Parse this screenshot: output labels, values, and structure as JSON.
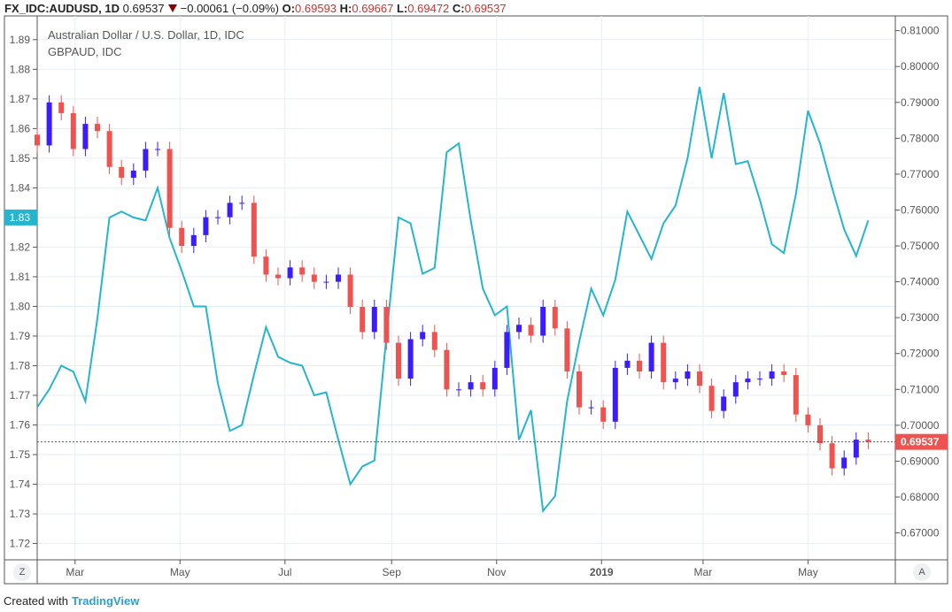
{
  "header": {
    "symbol": "FX_IDC:AUDUSD, 1D",
    "last": "0.69537",
    "change": "−0.00061 (−0.09%)",
    "o_label": "O:",
    "o": "0.69593",
    "h_label": "H:",
    "h": "0.69667",
    "l_label": "L:",
    "l": "0.69472",
    "c_label": "C:",
    "c": "0.69537"
  },
  "legend": {
    "main": "Australian Dollar / U.S. Dollar, 1D, IDC",
    "compare": "GBPAUD, IDC"
  },
  "footer": {
    "created": "Created with",
    "brand": "TradingView"
  },
  "buttons": {
    "z": "Z",
    "a": "A"
  },
  "colors": {
    "up": "#3a1cff",
    "down": "#ef5350",
    "compare": "#26b5d0",
    "left_highlight": "#26b5d0",
    "right_highlight": "#ef5350"
  },
  "chart_data": {
    "type": "candlestick+line",
    "x_ticks": [
      "Mar",
      "May",
      "Jul",
      "Sep",
      "Nov",
      "2019",
      "Mar",
      "May"
    ],
    "x_tick_dates": [
      "2018-03-01",
      "2018-05-01",
      "2018-07-01",
      "2018-09-01",
      "2018-11-01",
      "2019-01-01",
      "2019-03-01",
      "2019-05-01"
    ],
    "left_axis": {
      "ticks": [
        "1.89",
        "1.88",
        "1.87",
        "1.86",
        "1.85",
        "1.84",
        "1.83",
        "1.82",
        "1.81",
        "1.80",
        "1.79",
        "1.78",
        "1.77",
        "1.76",
        "1.75",
        "1.74",
        "1.73",
        "1.72"
      ],
      "range": [
        1.7145,
        1.898
      ],
      "highlight": "1.83"
    },
    "right_axis": {
      "ticks": [
        "0.81000",
        "0.80000",
        "0.79000",
        "0.78000",
        "0.77000",
        "0.76000",
        "0.75000",
        "0.74000",
        "0.73000",
        "0.72000",
        "0.71000",
        "0.70000",
        "0.69000",
        "0.68000",
        "0.67000"
      ],
      "range": [
        0.6625,
        0.8141
      ],
      "highlight": "0.69537"
    },
    "grid": true,
    "dates": [
      "2018-02-07",
      "2018-02-14",
      "2018-02-21",
      "2018-02-28",
      "2018-03-07",
      "2018-03-14",
      "2018-03-21",
      "2018-03-28",
      "2018-04-04",
      "2018-04-11",
      "2018-04-18",
      "2018-04-25",
      "2018-05-02",
      "2018-05-09",
      "2018-05-16",
      "2018-05-23",
      "2018-05-30",
      "2018-06-06",
      "2018-06-13",
      "2018-06-20",
      "2018-06-27",
      "2018-07-04",
      "2018-07-11",
      "2018-07-18",
      "2018-07-25",
      "2018-08-01",
      "2018-08-08",
      "2018-08-15",
      "2018-08-22",
      "2018-08-29",
      "2018-09-05",
      "2018-09-12",
      "2018-09-19",
      "2018-09-26",
      "2018-10-03",
      "2018-10-10",
      "2018-10-17",
      "2018-10-24",
      "2018-10-31",
      "2018-11-07",
      "2018-11-14",
      "2018-11-21",
      "2018-11-28",
      "2018-12-05",
      "2018-12-12",
      "2018-12-19",
      "2018-12-26",
      "2019-01-02",
      "2019-01-09",
      "2019-01-16",
      "2019-01-23",
      "2019-01-30",
      "2019-02-06",
      "2019-02-13",
      "2019-02-20",
      "2019-02-27",
      "2019-03-06",
      "2019-03-13",
      "2019-03-20",
      "2019-03-27",
      "2019-04-03",
      "2019-04-10",
      "2019-04-17",
      "2019-04-24",
      "2019-05-01",
      "2019-05-08",
      "2019-05-15",
      "2019-05-22",
      "2019-05-29",
      "2019-06-05"
    ],
    "series": [
      {
        "name": "FX_IDC:AUDUSD",
        "axis": "right",
        "style": "candles",
        "close": [
          0.778,
          0.79,
          0.787,
          0.777,
          0.784,
          0.782,
          0.772,
          0.769,
          0.771,
          0.777,
          0.777,
          0.755,
          0.75,
          0.753,
          0.758,
          0.758,
          0.762,
          0.762,
          0.747,
          0.742,
          0.741,
          0.744,
          0.742,
          0.74,
          0.74,
          0.742,
          0.733,
          0.726,
          0.733,
          0.723,
          0.713,
          0.724,
          0.726,
          0.721,
          0.71,
          0.71,
          0.712,
          0.71,
          0.716,
          0.726,
          0.728,
          0.725,
          0.733,
          0.727,
          0.715,
          0.705,
          0.705,
          0.701,
          0.716,
          0.718,
          0.715,
          0.723,
          0.712,
          0.713,
          0.715,
          0.711,
          0.704,
          0.708,
          0.712,
          0.713,
          0.713,
          0.715,
          0.714,
          0.703,
          0.7,
          0.695,
          0.688,
          0.691,
          0.696,
          0.69537
        ]
      },
      {
        "name": "GBPAUD",
        "axis": "left",
        "style": "line",
        "values": [
          1.766,
          1.772,
          1.78,
          1.778,
          1.768,
          1.796,
          1.83,
          1.832,
          1.83,
          1.829,
          1.84,
          1.823,
          1.812,
          1.8,
          1.8,
          1.774,
          1.758,
          1.76,
          1.777,
          1.793,
          1.783,
          1.781,
          1.78,
          1.77,
          1.771,
          1.755,
          1.74,
          1.746,
          1.748,
          1.79,
          1.83,
          1.828,
          1.811,
          1.813,
          1.852,
          1.855,
          1.829,
          1.806,
          1.797,
          1.8,
          1.755,
          1.765,
          1.731,
          1.736,
          1.768,
          1.788,
          1.806,
          1.797,
          1.809,
          1.832,
          1.824,
          1.816,
          1.828,
          1.834,
          1.85,
          1.874,
          1.85,
          1.872,
          1.848,
          1.849,
          1.836,
          1.821,
          1.818,
          1.838,
          1.866,
          1.855,
          1.84,
          1.826,
          1.817,
          1.829
        ]
      }
    ]
  }
}
